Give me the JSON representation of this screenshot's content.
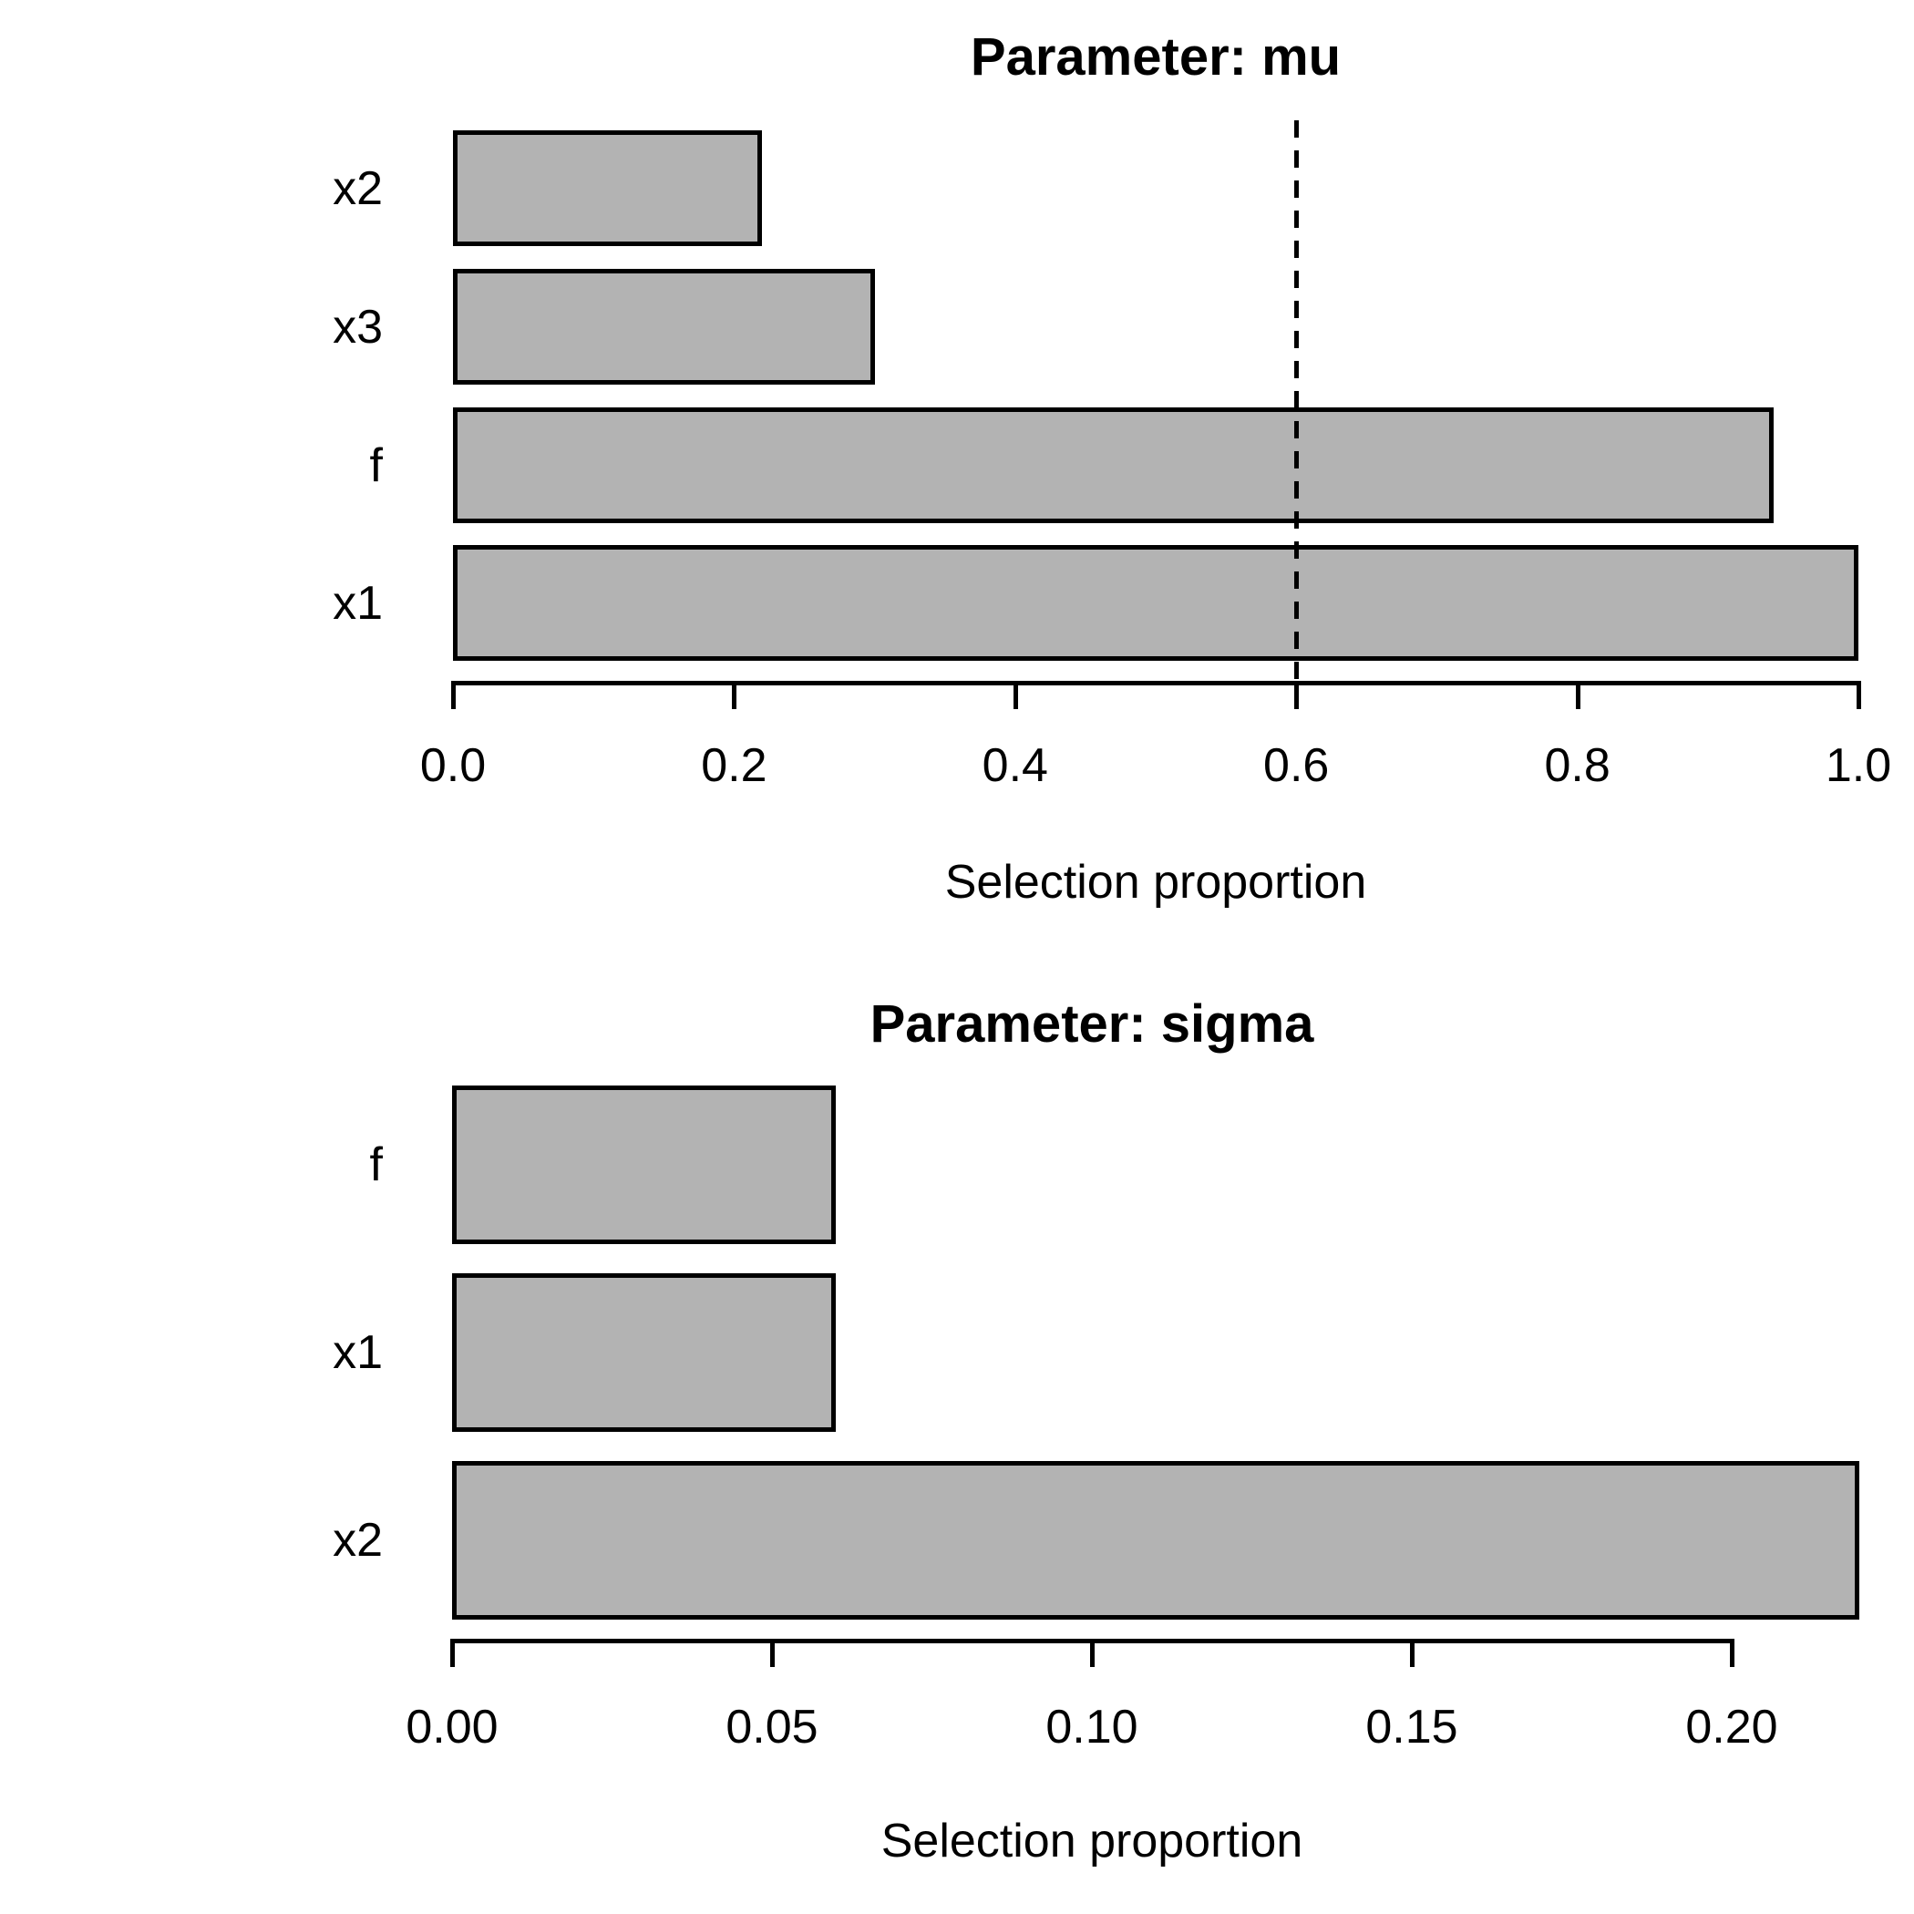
{
  "chart_data": [
    {
      "type": "bar",
      "orientation": "horizontal",
      "title": "Parameter: mu",
      "xlabel": "Selection proportion",
      "categories_top_to_bottom": [
        "x2",
        "x3",
        "f",
        "x1"
      ],
      "values": [
        0.22,
        0.3,
        0.94,
        1.0
      ],
      "x_tick_labels": [
        "0.0",
        "0.2",
        "0.4",
        "0.6",
        "0.8",
        "1.0"
      ],
      "x_tick_values": [
        0.0,
        0.2,
        0.4,
        0.6,
        0.8,
        1.0
      ],
      "xlim": [
        0.0,
        1.0
      ],
      "threshold_line": 0.6,
      "threshold_style": "dashed",
      "grid": "off",
      "legend": "none"
    },
    {
      "type": "bar",
      "orientation": "horizontal",
      "title": "Parameter: sigma",
      "xlabel": "Selection proportion",
      "categories_top_to_bottom": [
        "f",
        "x1",
        "x2"
      ],
      "values": [
        0.06,
        0.06,
        0.22
      ],
      "x_tick_labels": [
        "0.00",
        "0.05",
        "0.10",
        "0.15",
        "0.20"
      ],
      "x_tick_values": [
        0.0,
        0.05,
        0.1,
        0.15,
        0.2
      ],
      "xlim": [
        0.0,
        0.22
      ],
      "threshold_line": null,
      "threshold_style": null,
      "grid": "off",
      "legend": "none"
    }
  ],
  "colors": {
    "bar_fill": "#b3b3b3",
    "bar_border": "#000000",
    "axis": "#000000",
    "text": "#000000",
    "background": "#ffffff"
  }
}
